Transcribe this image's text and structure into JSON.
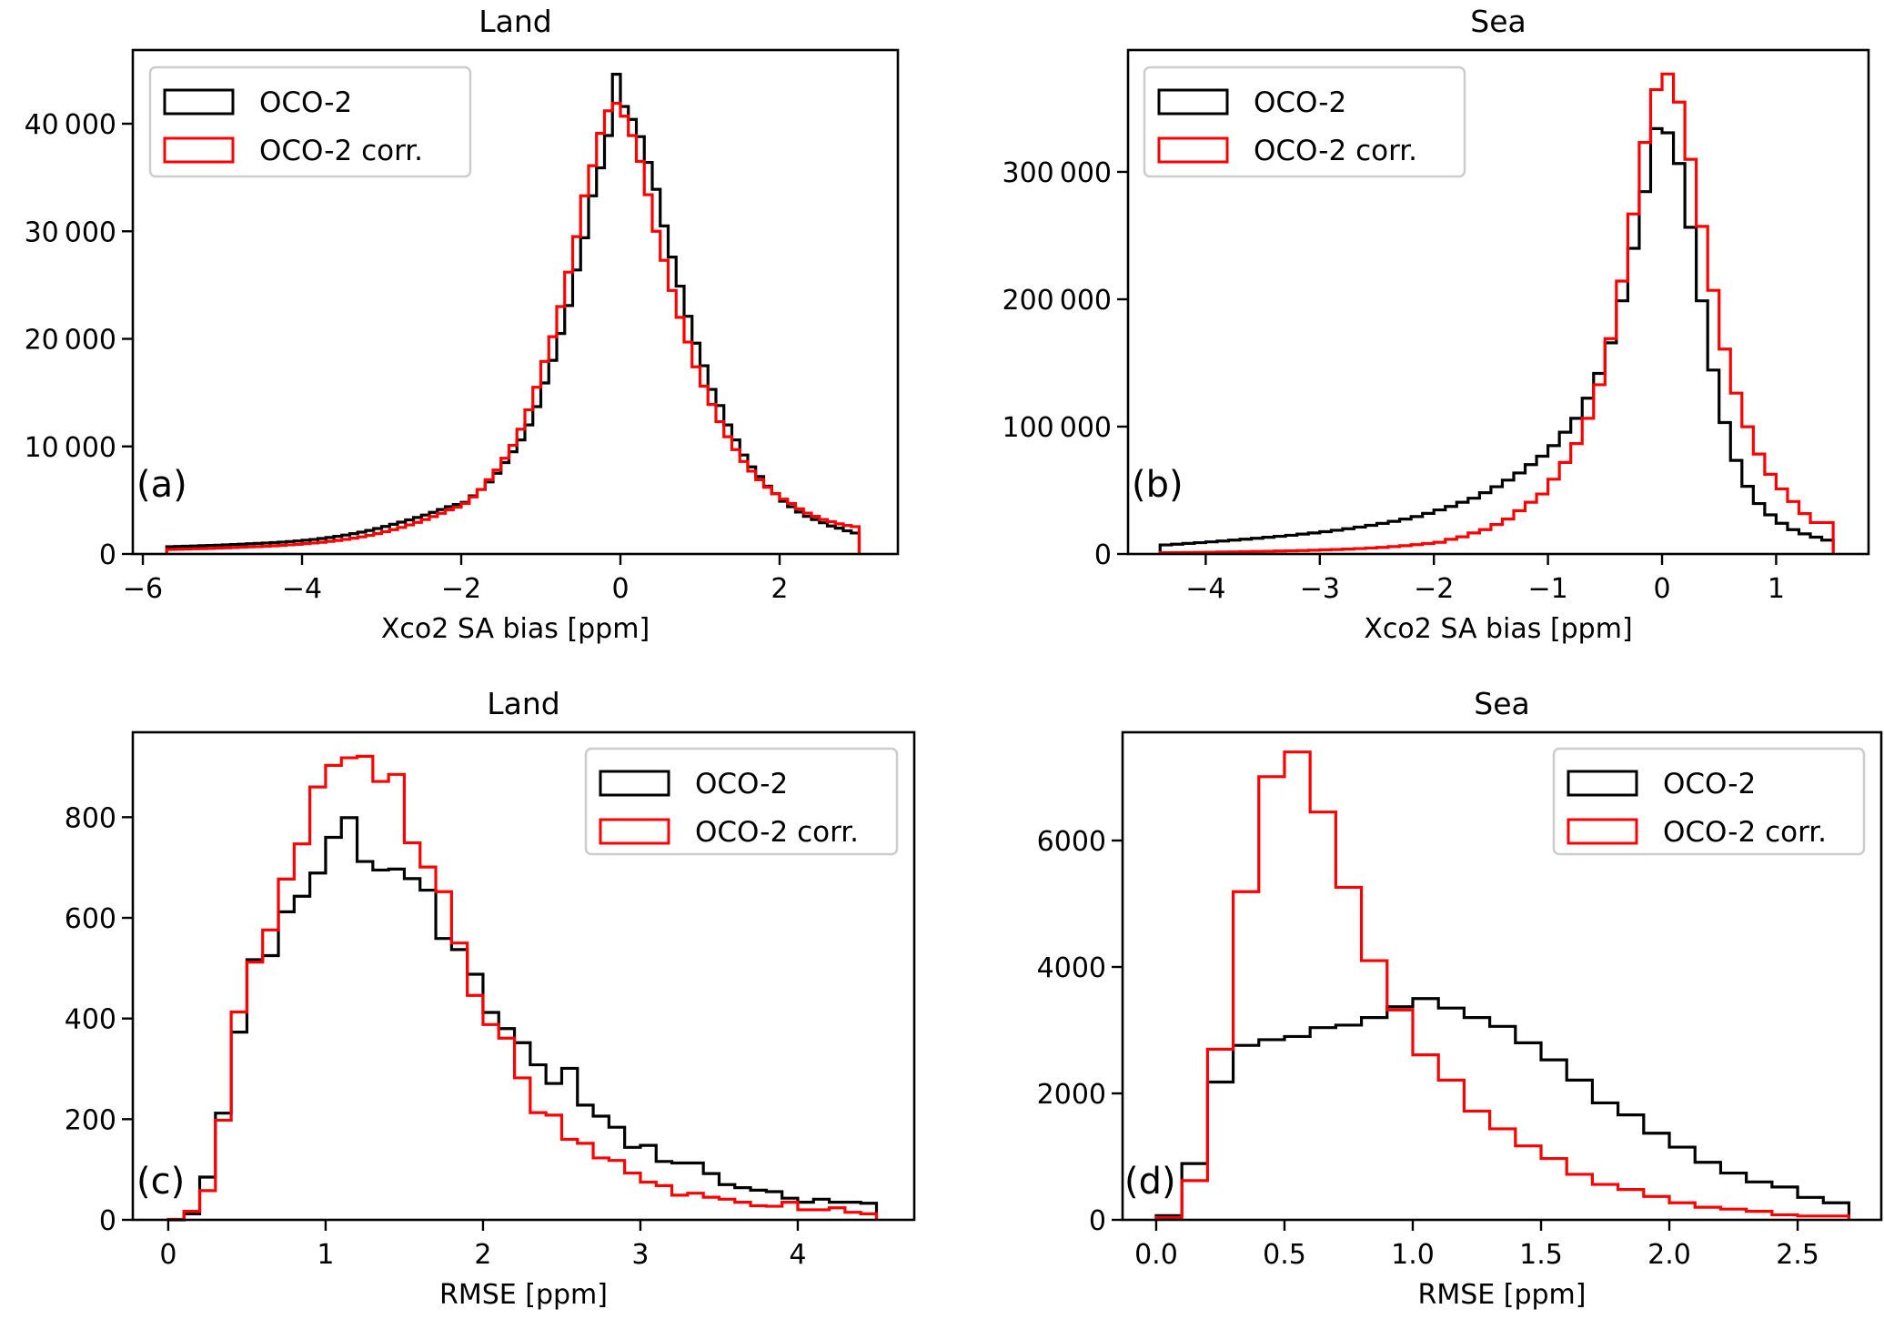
{
  "figure": {
    "colors": {
      "oco2": "#000000",
      "oco2_corr": "#ff0000",
      "legend_frame": "#cccccc",
      "axes": "#000000"
    }
  },
  "chart_data": [
    {
      "id": "a",
      "type": "histogram-step",
      "panel_label": "(a)",
      "title": "Land",
      "xlabel": "Xco2 SA bias [ppm]",
      "ylabel": "",
      "xlim": [
        -6.126,
        3.486
      ],
      "ylim": [
        0,
        46850
      ],
      "xticks": [
        -6,
        -4,
        -2,
        0,
        2
      ],
      "xtick_labels": [
        "−6",
        "−4",
        "−2",
        "0",
        "2"
      ],
      "yticks": [
        0,
        10000,
        20000,
        30000,
        40000
      ],
      "ytick_labels": [
        "0",
        "10 000",
        "20 000",
        "30 000",
        "40 000"
      ],
      "legend": {
        "position": "upper-left",
        "entries": [
          "OCO-2",
          "OCO-2 corr."
        ]
      },
      "bin_start": -5.7,
      "bin_width": 0.1,
      "series": [
        {
          "name": "OCO-2",
          "color": "#000000",
          "values": [
            680,
            700,
            720,
            740,
            770,
            790,
            820,
            850,
            880,
            910,
            950,
            980,
            1020,
            1060,
            1100,
            1150,
            1210,
            1280,
            1350,
            1440,
            1530,
            1640,
            1760,
            1890,
            2030,
            2190,
            2370,
            2560,
            2760,
            2960,
            3170,
            3390,
            3620,
            3870,
            4130,
            4400,
            4600,
            4800,
            5400,
            6000,
            6700,
            7500,
            8500,
            9500,
            10600,
            12000,
            13700,
            15900,
            18000,
            20500,
            23100,
            26400,
            29400,
            33300,
            35900,
            38900,
            44600,
            41600,
            40400,
            38800,
            36400,
            33900,
            30500,
            27600,
            24900,
            22100,
            19600,
            17500,
            15300,
            13800,
            12000,
            10600,
            9200,
            8100,
            7200,
            6300,
            5600,
            4900,
            4400,
            3900,
            3500,
            3200,
            2900,
            2600,
            2400,
            2150,
            1950
          ]
        },
        {
          "name": "OCO-2 corr.",
          "color": "#ff0000",
          "values": [
            420,
            440,
            460,
            480,
            500,
            520,
            550,
            570,
            600,
            630,
            660,
            690,
            720,
            760,
            800,
            850,
            900,
            960,
            1020,
            1090,
            1170,
            1260,
            1360,
            1470,
            1590,
            1730,
            1890,
            2070,
            2260,
            2470,
            2700,
            2940,
            3200,
            3480,
            3780,
            4100,
            4350,
            4700,
            5300,
            6000,
            6900,
            7800,
            8900,
            10100,
            11600,
            13400,
            15500,
            17900,
            20200,
            23000,
            26200,
            29500,
            33300,
            36100,
            39100,
            41200,
            41900,
            40700,
            38900,
            36500,
            33400,
            30000,
            27300,
            24500,
            22000,
            19700,
            17400,
            15600,
            13900,
            12300,
            10900,
            9700,
            8600,
            7700,
            6900,
            6200,
            5600,
            5100,
            4700,
            4200,
            3800,
            3500,
            3200,
            3000,
            2800,
            2650,
            2540
          ]
        }
      ]
    },
    {
      "id": "b",
      "type": "histogram-step",
      "panel_label": "(b)",
      "title": "Sea",
      "xlabel": "Xco2 SA bias [ppm]",
      "ylabel": "",
      "xlim": [
        -4.681,
        1.81
      ],
      "ylim": [
        0,
        395700
      ],
      "xticks": [
        -4,
        -3,
        -2,
        -1,
        0,
        1
      ],
      "xtick_labels": [
        "−4",
        "−3",
        "−2",
        "−1",
        "0",
        "1"
      ],
      "yticks": [
        0,
        100000,
        200000,
        300000
      ],
      "ytick_labels": [
        "0",
        "100 000",
        "200 000",
        "300 000"
      ],
      "legend": {
        "position": "upper-left",
        "entries": [
          "OCO-2",
          "OCO-2 corr."
        ]
      },
      "bin_start": -4.4,
      "bin_width": 0.1,
      "series": [
        {
          "name": "OCO-2",
          "color": "#000000",
          "values": [
            7100,
            7700,
            8300,
            8900,
            9500,
            10200,
            10900,
            11600,
            12300,
            13100,
            13900,
            14700,
            15600,
            16500,
            17500,
            18600,
            19800,
            21100,
            22500,
            24000,
            25600,
            27400,
            29400,
            31900,
            34600,
            37300,
            40600,
            43800,
            48100,
            52800,
            58000,
            63600,
            70200,
            76800,
            85100,
            95600,
            106500,
            122300,
            141800,
            165800,
            198800,
            240000,
            284500,
            334000,
            330700,
            306600,
            256500,
            198800,
            144400,
            103200,
            73500,
            53100,
            39600,
            30700,
            24100,
            19100,
            15800,
            13200,
            10900
          ]
        },
        {
          "name": "OCO-2 corr.",
          "color": "#ff0000",
          "values": [
            1000,
            1100,
            1200,
            1300,
            1400,
            1500,
            1650,
            1800,
            1950,
            2100,
            2300,
            2500,
            2700,
            2950,
            3200,
            3500,
            3850,
            4250,
            4700,
            5200,
            5800,
            6500,
            7300,
            8200,
            9200,
            11500,
            13500,
            16500,
            19100,
            23100,
            27400,
            34000,
            40600,
            47100,
            58700,
            71900,
            86700,
            106500,
            132900,
            169100,
            214300,
            267000,
            323100,
            364600,
            376900,
            354800,
            309900,
            257200,
            207000,
            160900,
            126300,
            99900,
            78500,
            62600,
            51100,
            41200,
            31700,
            24700,
            24700
          ]
        }
      ]
    },
    {
      "id": "c",
      "type": "histogram-step",
      "panel_label": "(c)",
      "title": "Land",
      "xlabel": "RMSE [ppm]",
      "ylabel": "",
      "xlim": [
        -0.225,
        4.74
      ],
      "ylim": [
        0,
        968.7
      ],
      "xticks": [
        0,
        1,
        2,
        3,
        4
      ],
      "xtick_labels": [
        "0",
        "1",
        "2",
        "3",
        "4"
      ],
      "yticks": [
        0,
        200,
        400,
        600,
        800
      ],
      "ytick_labels": [
        "0",
        "200",
        "400",
        "600",
        "800"
      ],
      "legend": {
        "position": "upper-right",
        "entries": [
          "OCO-2",
          "OCO-2 corr."
        ]
      },
      "bin_start": 0.0,
      "bin_width": 0.1,
      "series": [
        {
          "name": "OCO-2",
          "color": "#000000",
          "values": [
            0,
            12,
            85,
            212,
            373,
            517,
            525,
            612,
            643,
            689,
            760,
            799,
            712,
            695,
            697,
            678,
            655,
            559,
            537,
            488,
            412,
            380,
            352,
            308,
            271,
            301,
            228,
            206,
            184,
            144,
            148,
            116,
            113,
            113,
            92,
            70,
            64,
            59,
            56,
            43,
            35,
            41,
            35,
            35,
            33
          ]
        },
        {
          "name": "OCO-2 corr.",
          "color": "#ff0000",
          "values": [
            1,
            17,
            58,
            198,
            413,
            512,
            576,
            677,
            747,
            860,
            903,
            918,
            921,
            871,
            885,
            749,
            701,
            652,
            550,
            446,
            388,
            361,
            282,
            213,
            208,
            160,
            152,
            123,
            118,
            93,
            75,
            68,
            49,
            53,
            45,
            41,
            35,
            28,
            27,
            35,
            20,
            20,
            24,
            15,
            12
          ]
        }
      ]
    },
    {
      "id": "d",
      "type": "histogram-step",
      "panel_label": "(d)",
      "title": "Sea",
      "xlabel": "RMSE [ppm]",
      "ylabel": "",
      "xlim": [
        -0.131,
        2.826
      ],
      "ylim": [
        0,
        7712
      ],
      "xticks": [
        0.0,
        0.5,
        1.0,
        1.5,
        2.0,
        2.5
      ],
      "xtick_labels": [
        "0.0",
        "0.5",
        "1.0",
        "1.5",
        "2.0",
        "2.5"
      ],
      "yticks": [
        0,
        2000,
        4000,
        6000
      ],
      "ytick_labels": [
        "0",
        "2000",
        "4000",
        "6000"
      ],
      "legend": {
        "position": "upper-right",
        "entries": [
          "OCO-2",
          "OCO-2 corr."
        ]
      },
      "bin_start": 0.0,
      "bin_width": 0.1,
      "series": [
        {
          "name": "OCO-2",
          "color": "#000000",
          "values": [
            67,
            890,
            2180,
            2760,
            2850,
            2900,
            3040,
            3080,
            3200,
            3370,
            3500,
            3350,
            3200,
            3060,
            2800,
            2530,
            2210,
            1850,
            1660,
            1370,
            1150,
            910,
            740,
            600,
            520,
            355,
            270
          ]
        },
        {
          "name": "OCO-2 corr.",
          "color": "#ff0000",
          "values": [
            35,
            620,
            2700,
            5190,
            7010,
            7400,
            6450,
            5260,
            4100,
            3320,
            2610,
            2210,
            1720,
            1440,
            1170,
            970,
            720,
            560,
            480,
            370,
            270,
            200,
            170,
            135,
            80,
            60,
            60
          ]
        }
      ]
    }
  ]
}
